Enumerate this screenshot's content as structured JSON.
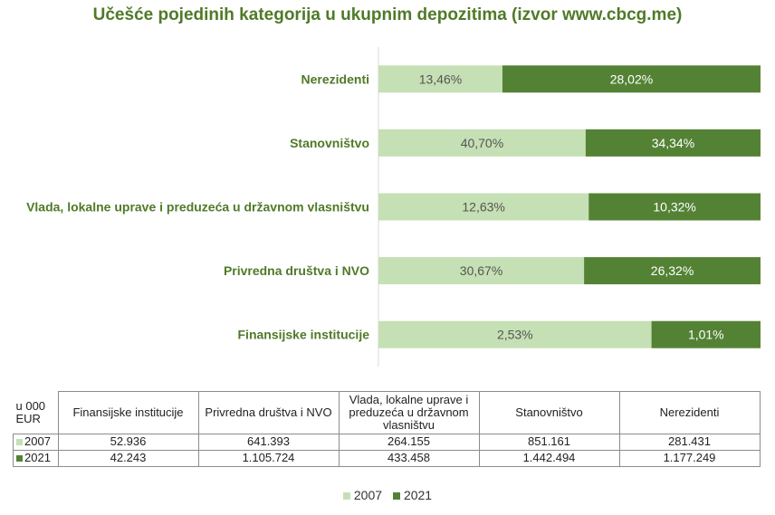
{
  "colors": {
    "y2007": "#c5e0b4",
    "y2021": "#548235",
    "title": "#4f7a28"
  },
  "chart_data": {
    "type": "bar",
    "orientation": "horizontal",
    "stacked": "100%",
    "title": "Učešće pojedinih kategorija u ukupnim depozitima (izvor www.cbcg.me)",
    "categories": [
      "Finansijske institucije",
      "Privredna društva i NVO",
      "Vlada, lokalne uprave i preduzeća u državnom vlasništvu",
      "Stanovništvo",
      "Nerezidenti"
    ],
    "series": [
      {
        "name": "2007",
        "values": [
          2.53,
          30.67,
          12.63,
          40.7,
          13.46
        ],
        "labels": [
          "2,53%",
          "30,67%",
          "12,63%",
          "40,70%",
          "13,46%"
        ]
      },
      {
        "name": "2021",
        "values": [
          1.01,
          26.32,
          10.32,
          34.34,
          28.02
        ],
        "labels": [
          "1,01%",
          "26,32%",
          "10,32%",
          "34,34%",
          "28,02%"
        ]
      }
    ],
    "legend": "bottom",
    "grid": false
  },
  "table": {
    "unit_label": "u 000 EUR",
    "headers": [
      "Finansijske institucije",
      "Privredna društva i NVO",
      "Vlada, lokalne uprave i preduzeća u državnom vlasništvu",
      "Stanovništvo",
      "Nerezidenti"
    ],
    "rows": [
      {
        "label": "2007",
        "values": [
          "52.936",
          "641.393",
          "264.155",
          "851.161",
          "281.431"
        ]
      },
      {
        "label": "2021",
        "values": [
          "42.243",
          "1.105.724",
          "433.458",
          "1.442.494",
          "1.177.249"
        ]
      }
    ]
  },
  "legend": {
    "items": [
      "2007",
      "2021"
    ]
  }
}
